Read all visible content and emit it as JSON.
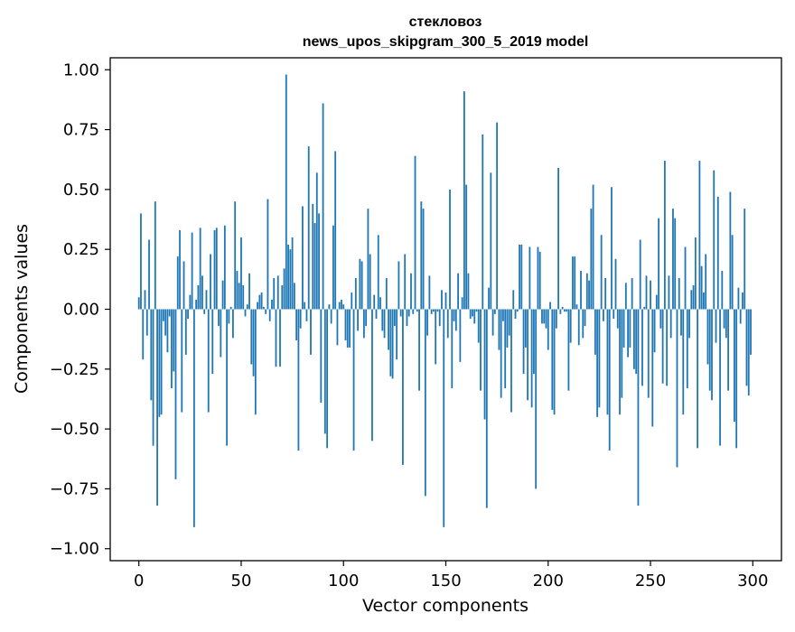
{
  "chart_data": {
    "type": "bar",
    "title": "стекловоз",
    "subtitle": "news_upos_skipgram_300_5_2019 model",
    "xlabel": "Vector components",
    "ylabel": "Components values",
    "xlim": [
      -14,
      314
    ],
    "ylim": [
      -1.05,
      1.05
    ],
    "xticks": [
      0,
      50,
      100,
      150,
      200,
      250,
      300
    ],
    "yticks": [
      -1.0,
      -0.75,
      -0.5,
      -0.25,
      0.0,
      0.25,
      0.5,
      0.75,
      1.0
    ],
    "ytick_labels": [
      "−1.00",
      "−0.75",
      "−0.50",
      "−0.25",
      "0.00",
      "0.25",
      "0.50",
      "0.75",
      "1.00"
    ],
    "grid": false,
    "bar_color": "#1f77b4",
    "x": "0..299",
    "values": [
      0.05,
      0.4,
      -0.21,
      0.08,
      -0.11,
      0.29,
      -0.38,
      -0.57,
      0.45,
      -0.82,
      -0.45,
      -0.44,
      -0.05,
      -0.11,
      -0.18,
      -0.03,
      -0.33,
      -0.26,
      -0.71,
      0.22,
      0.33,
      -0.43,
      0.2,
      -0.19,
      -0.04,
      0.06,
      0.32,
      -0.91,
      0.04,
      0.1,
      0.34,
      0.14,
      -0.02,
      0.08,
      -0.43,
      0.23,
      -0.27,
      0.33,
      0.34,
      -0.07,
      -0.2,
      0.12,
      0.35,
      -0.57,
      -0.06,
      0.01,
      -0.12,
      0.45,
      0.16,
      0.11,
      0.3,
      0.1,
      -0.03,
      0.02,
      0.15,
      -0.23,
      -0.28,
      -0.44,
      0.03,
      0.06,
      0.07,
      0.01,
      -0.02,
      0.46,
      -0.05,
      0.04,
      0.13,
      -0.24,
      0.14,
      -0.24,
      0.1,
      0.17,
      0.98,
      0.27,
      0.25,
      0.3,
      0.11,
      -0.13,
      -0.59,
      -0.08,
      0.43,
      0.03,
      -0.05,
      0.68,
      -0.19,
      0.44,
      0.36,
      0.57,
      0.4,
      -0.39,
      0.86,
      -0.52,
      -0.58,
      0.02,
      -0.06,
      0.35,
      0.66,
      -0.15,
      0.03,
      0.04,
      0.02,
      -0.13,
      -0.16,
      -0.16,
      0.07,
      -0.59,
      0.13,
      -0.09,
      0.21,
      0.2,
      -0.12,
      -0.07,
      0.42,
      0.23,
      -0.55,
      0.06,
      -0.04,
      0.31,
      0.05,
      -0.09,
      -0.12,
      0.13,
      -0.17,
      -0.28,
      -0.29,
      -0.07,
      -0.21,
      0.2,
      -0.03,
      -0.65,
      0.23,
      -0.07,
      -0.03,
      0.15,
      -0.02,
      0.64,
      -0.01,
      -0.34,
      0.45,
      0.42,
      -0.78,
      -0.11,
      0.14,
      -0.02,
      -0.01,
      -0.23,
      -0.01,
      -0.07,
      0.08,
      -0.91,
      0.07,
      -0.12,
      0.5,
      -0.33,
      -0.05,
      -0.09,
      0.15,
      -0.22,
      0.05,
      0.91,
      0.52,
      0.15,
      -0.04,
      -0.03,
      -0.06,
      -0.01,
      -0.14,
      -0.34,
      0.73,
      -0.46,
      -0.83,
      0.09,
      0.57,
      -0.11,
      -0.02,
      0.78,
      -0.17,
      -0.37,
      -0.05,
      -0.33,
      -0.16,
      -0.11,
      -0.43,
      0.08,
      -0.04,
      -0.01,
      0.27,
      0.27,
      -0.27,
      -0.16,
      -0.38,
      0.26,
      -0.41,
      -0.27,
      -0.75,
      0.26,
      0.24,
      -0.06,
      -0.06,
      -0.08,
      -0.17,
      0.03,
      -0.42,
      -0.44,
      -0.08,
      0.59,
      -0.02,
      0.01,
      -0.01,
      -0.01,
      -0.34,
      -0.14,
      0.22,
      0.22,
      0.02,
      -0.15,
      0.16,
      -0.12,
      -0.07,
      0.15,
      0.12,
      0.42,
      0.52,
      -0.19,
      -0.45,
      -0.41,
      0.31,
      -0.05,
      0.13,
      -0.44,
      -0.59,
      0.51,
      -0.04,
      0.21,
      -0.08,
      -0.44,
      -0.37,
      -0.16,
      0.11,
      -0.2,
      -0.16,
      0.13,
      -0.25,
      -0.27,
      -0.82,
      0.29,
      -0.32,
      0.01,
      0.14,
      -0.37,
      0.12,
      -0.49,
      -0.18,
      0.06,
      0.38,
      -0.08,
      -0.31,
      0.62,
      -0.32,
      0.14,
      -0.12,
      0.42,
      0.38,
      -0.66,
      0.13,
      -0.11,
      -0.44,
      0.26,
      -0.33,
      -0.12,
      0.08,
      0.1,
      0.3,
      -0.58,
      0.62,
      0.18,
      0.07,
      0.23,
      -0.23,
      -0.34,
      -0.38,
      0.58,
      -0.14,
      0.47,
      -0.57,
      0.16,
      -0.08,
      -0.12,
      -0.34,
      0.49,
      0.31,
      -0.47,
      -0.58,
      0.09,
      -0.06,
      0.07,
      0.42,
      -0.32,
      -0.36,
      -0.19
    ]
  }
}
